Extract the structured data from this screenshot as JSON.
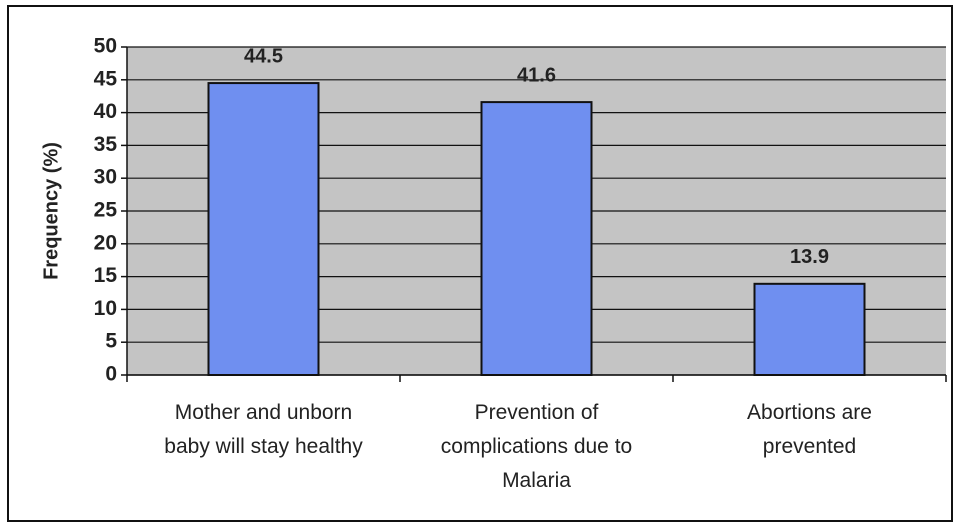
{
  "chart_data": {
    "type": "bar",
    "y_label": "Frequency (%)",
    "categories": [
      "Mother and unborn\nbaby will stay healthy",
      "Prevention of\ncomplications due to\nMalaria",
      "Abortions are\nprevented"
    ],
    "values": [
      44.5,
      41.6,
      13.9
    ],
    "color": "#6f8ff0",
    "ylim": [
      0,
      50
    ],
    "yticks": [
      0,
      5,
      10,
      15,
      20,
      25,
      30,
      35,
      40,
      45,
      50
    ],
    "grid": true
  }
}
